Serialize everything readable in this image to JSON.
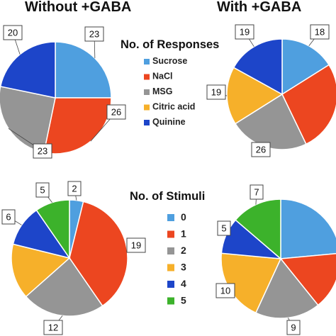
{
  "chart_data": [
    {
      "type": "pie",
      "title": "Without +GABA",
      "legend_title": "No. of Responses",
      "categories": [
        "Sucrose",
        "NaCl",
        "MSG",
        "Citric acid",
        "Quinine"
      ],
      "values": [
        23,
        26,
        23,
        0,
        20
      ],
      "data_labels": [
        "23",
        "26",
        "23",
        "",
        "20"
      ],
      "colors": [
        "#4f9fdf",
        "#ec4620",
        "#959595",
        "#f6b02a",
        "#1d45c9"
      ]
    },
    {
      "type": "pie",
      "title": "With +GABA",
      "legend_title": "No. of Responses",
      "categories": [
        "Sucrose",
        "NaCl",
        "MSG",
        "Citric acid",
        "Quinine"
      ],
      "values": [
        18,
        30,
        26,
        19,
        19
      ],
      "data_labels": [
        "18",
        "",
        "26",
        "19",
        "19"
      ],
      "colors": [
        "#4f9fdf",
        "#ec4620",
        "#959595",
        "#f6b02a",
        "#1d45c9"
      ]
    },
    {
      "type": "pie",
      "title": "",
      "legend_title": "No. of Stimuli",
      "categories": [
        "0",
        "1",
        "2",
        "3",
        "4",
        "5"
      ],
      "values": [
        2,
        19,
        12,
        8,
        6,
        5
      ],
      "data_labels": [
        "2",
        "19",
        "12",
        "",
        "6",
        "5"
      ],
      "colors": [
        "#4f9fdf",
        "#ec4620",
        "#959595",
        "#f6b02a",
        "#1d45c9",
        "#3cb22b"
      ]
    },
    {
      "type": "pie",
      "title": "",
      "legend_title": "No. of Stimuli",
      "categories": [
        "0",
        "1",
        "2",
        "3",
        "4",
        "5"
      ],
      "values": [
        12,
        8,
        9,
        10,
        5,
        7
      ],
      "data_labels": [
        "",
        "",
        "9",
        "10",
        "5",
        "7"
      ],
      "colors": [
        "#4f9fdf",
        "#ec4620",
        "#959595",
        "#f6b02a",
        "#1d45c9",
        "#3cb22b"
      ]
    }
  ],
  "legend_responses": {
    "title": "No. of Responses",
    "items": [
      "Sucrose",
      "NaCl",
      "MSG",
      "Citric acid",
      "Quinine"
    ],
    "colors": [
      "#4f9fdf",
      "#ec4620",
      "#959595",
      "#f6b02a",
      "#1d45c9"
    ]
  },
  "legend_stimuli": {
    "title": "No. of Stimuli",
    "items": [
      "0",
      "1",
      "2",
      "3",
      "4",
      "5"
    ],
    "colors": [
      "#4f9fdf",
      "#ec4620",
      "#959595",
      "#f6b02a",
      "#1d45c9",
      "#3cb22b"
    ]
  }
}
